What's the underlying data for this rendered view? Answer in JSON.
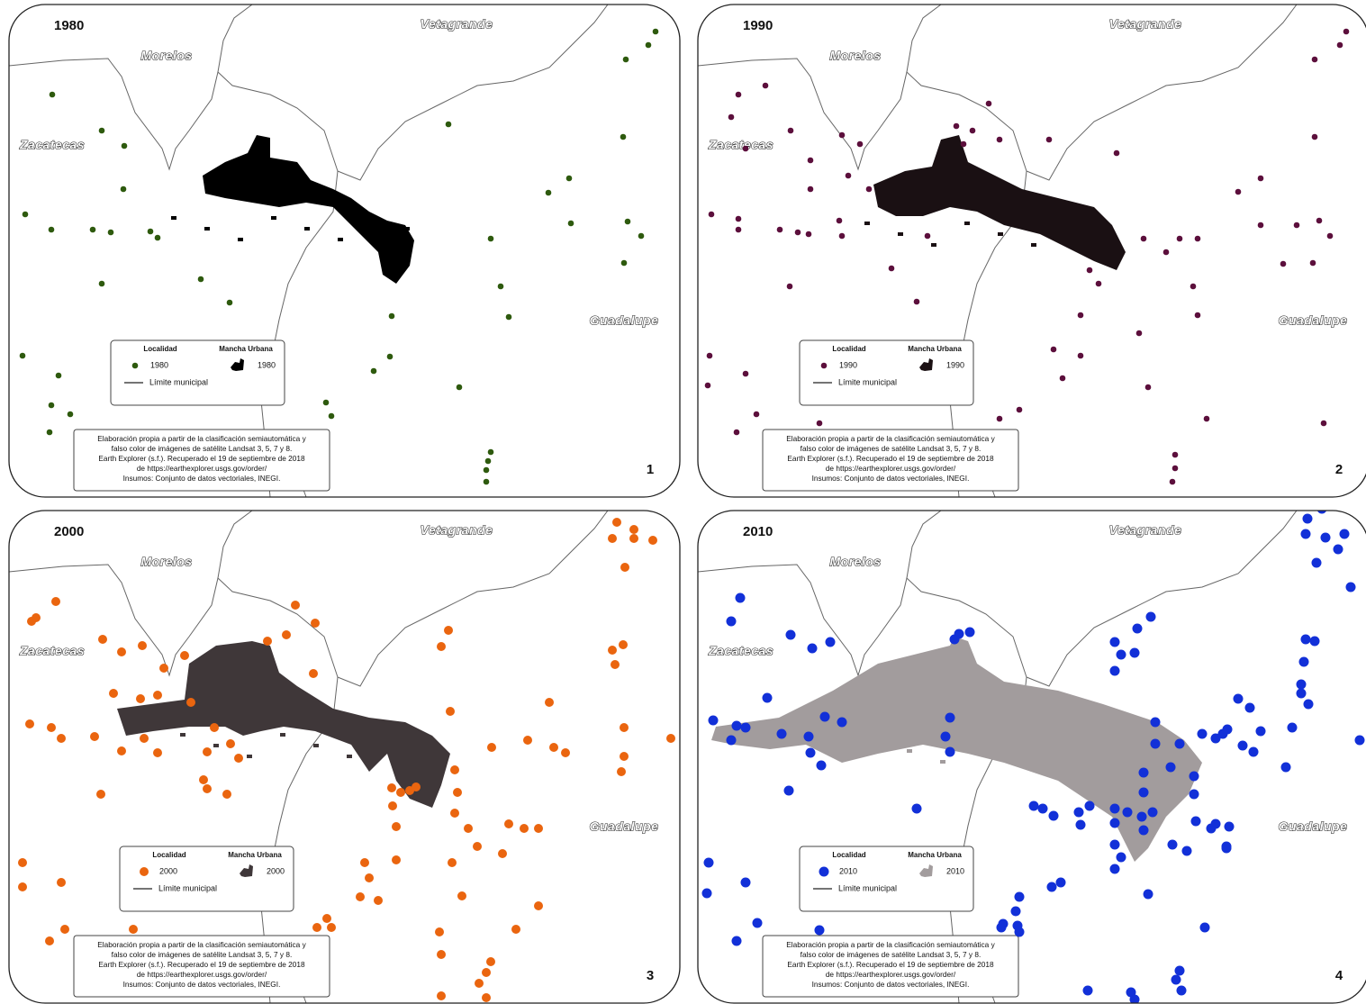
{
  "panels": [
    {
      "year": "1980",
      "number": "1",
      "place_labels": {
        "vetagrande": "Vetagrande",
        "morelos": "Morelos",
        "zacatecas": "Zacatecas",
        "guadalupe": "Guadalupe"
      },
      "legend": {
        "localidad": "Localidad",
        "mancha_urbana": "Mancha Urbana",
        "limite": "Límite municipal"
      },
      "source": [
        "Elaboración propia a partir de la clasificación semiautomática y",
        "falso color de imágenes de satélite Landsat 3, 5, 7 y 8.",
        "Earth Explorer (s.f.). Recuperado el 19 de septiembre de 2018",
        "de https://earthexplorer.usgs.gov/order/",
        "Insumos: Conjunto de datos vectoriales, INEGI."
      ]
    },
    {
      "year": "1990",
      "number": "2",
      "place_labels": {
        "vetagrande": "Vetagrande",
        "morelos": "Morelos",
        "zacatecas": "Zacatecas",
        "guadalupe": "Guadalupe"
      },
      "legend": {
        "localidad": "Localidad",
        "mancha_urbana": "Mancha Urbana",
        "limite": "Límite municipal"
      },
      "source": [
        "Elaboración propia a partir de la clasificación semiautomática y",
        "falso color de imágenes de satélite Landsat 3, 5, 7 y 8.",
        "Earth Explorer (s.f.). Recuperado el 19 de septiembre de 2018",
        "de https://earthexplorer.usgs.gov/order/",
        "Insumos: Conjunto de datos vectoriales, INEGI."
      ]
    },
    {
      "year": "2000",
      "number": "3",
      "place_labels": {
        "vetagrande": "Vetagrande",
        "morelos": "Morelos",
        "zacatecas": "Zacatecas",
        "guadalupe": "Guadalupe"
      },
      "legend": {
        "localidad": "Localidad",
        "mancha_urbana": "Mancha Urbana",
        "limite": "Límite municipal"
      },
      "source": [
        "Elaboración propia a partir de la clasificación semiautomática y",
        "falso color de imágenes de satélite Landsat 3, 5, 7 y 8.",
        "Earth Explorer (s.f.). Recuperado el 19 de septiembre de 2018",
        "de https://earthexplorer.usgs.gov/order/",
        "Insumos: Conjunto de datos vectoriales, INEGI."
      ]
    },
    {
      "year": "2010",
      "number": "4",
      "place_labels": {
        "vetagrande": "Vetagrande",
        "morelos": "Morelos",
        "zacatecas": "Zacatecas",
        "guadalupe": "Guadalupe"
      },
      "legend": {
        "localidad": "Localidad",
        "mancha_urbana": "Mancha Urbana",
        "limite": "Límite municipal"
      },
      "source": [
        "Elaboración propia a partir de la clasificación semiautomática y",
        "falso color de imágenes de satélite Landsat 3, 5, 7 y 8.",
        "Earth Explorer (s.f.). Recuperado el 19 de septiembre de 2018",
        "de https://earthexplorer.usgs.gov/order/",
        "Insumos: Conjunto de datos vectoriales, INEGI."
      ]
    }
  ]
}
